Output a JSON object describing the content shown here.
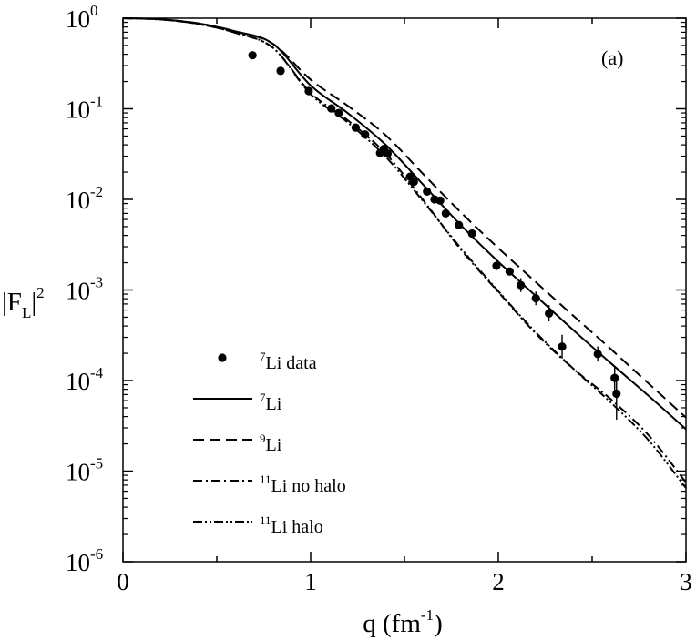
{
  "chart_data": {
    "type": "line",
    "title": "",
    "panel_label": "(a)",
    "xlabel": {
      "base": "q (fm",
      "exp": "-1",
      "close": ")"
    },
    "ylabel": {
      "open": "|F",
      "sub": "L",
      "close": "|",
      "exp": "2"
    },
    "x_scale": "linear",
    "y_scale": "log",
    "xlim": [
      0,
      3
    ],
    "ylim": [
      1e-06,
      1
    ],
    "grid": false,
    "legend_position": "bottom-left",
    "x_ticks": [
      {
        "value": 0,
        "label": "0"
      },
      {
        "value": 1,
        "label": "1"
      },
      {
        "value": 2,
        "label": "2"
      },
      {
        "value": 3,
        "label": "3"
      }
    ],
    "y_ticks": [
      {
        "value": 1,
        "base": "10",
        "exp": "0"
      },
      {
        "value": 0.1,
        "base": "10",
        "exp": "-1"
      },
      {
        "value": 0.01,
        "base": "10",
        "exp": "-2"
      },
      {
        "value": 0.001,
        "base": "10",
        "exp": "-3"
      },
      {
        "value": 0.0001,
        "base": "10",
        "exp": "-4"
      },
      {
        "value": 1e-05,
        "base": "10",
        "exp": "-5"
      },
      {
        "value": 1e-06,
        "base": "10",
        "exp": "-6"
      }
    ],
    "data_points": {
      "legend": {
        "sup": "7",
        "text": "Li data"
      },
      "points": [
        {
          "x": 0.69,
          "y": 0.39
        },
        {
          "x": 0.84,
          "y": 0.262
        },
        {
          "x": 0.99,
          "y": 0.157
        },
        {
          "x": 1.11,
          "y": 0.101
        },
        {
          "x": 1.15,
          "y": 0.09
        },
        {
          "x": 1.24,
          "y": 0.062
        },
        {
          "x": 1.29,
          "y": 0.052
        },
        {
          "x": 1.37,
          "y": 0.0325
        },
        {
          "x": 1.39,
          "y": 0.036
        },
        {
          "x": 1.41,
          "y": 0.032
        },
        {
          "x": 1.53,
          "y": 0.0178
        },
        {
          "x": 1.55,
          "y": 0.0156
        },
        {
          "x": 1.62,
          "y": 0.0122
        },
        {
          "x": 1.66,
          "y": 0.01
        },
        {
          "x": 1.69,
          "y": 0.0097
        },
        {
          "x": 1.72,
          "y": 0.007
        },
        {
          "x": 1.79,
          "y": 0.0052
        },
        {
          "x": 1.86,
          "y": 0.0042
        },
        {
          "x": 1.99,
          "y": 0.00185,
          "err": [
            0.00165,
            0.00205
          ]
        },
        {
          "x": 2.06,
          "y": 0.0016,
          "err": [
            0.00145,
            0.00175
          ]
        },
        {
          "x": 2.12,
          "y": 0.00113,
          "err": [
            0.00095,
            0.00135
          ]
        },
        {
          "x": 2.2,
          "y": 0.00081,
          "err": [
            0.00068,
            0.00096
          ]
        },
        {
          "x": 2.27,
          "y": 0.00055,
          "err": [
            0.00045,
            0.00068
          ]
        },
        {
          "x": 2.34,
          "y": 0.000237,
          "err": [
            0.000175,
            0.00032
          ]
        },
        {
          "x": 2.53,
          "y": 0.000196,
          "err": [
            0.000162,
            0.000238
          ]
        },
        {
          "x": 2.62,
          "y": 0.000107,
          "err": [
            7.8e-05,
            0.000145
          ]
        },
        {
          "x": 2.63,
          "y": 7.15e-05,
          "err": [
            3.7e-05,
            0.000105
          ]
        }
      ]
    },
    "series": [
      {
        "name": "Li",
        "legend": {
          "sup": "7",
          "text": "Li"
        },
        "dash": "",
        "x": [
          0,
          0.2,
          0.4,
          0.6,
          0.8,
          1.0,
          1.2,
          1.4,
          1.6,
          1.8,
          2.0,
          2.2,
          2.4,
          2.6,
          2.8,
          3.0
        ],
        "y": [
          1,
          0.972,
          0.878,
          0.715,
          0.52,
          0.181,
          0.089,
          0.04,
          0.0145,
          0.0052,
          0.00205,
          0.000858,
          0.00036,
          0.000155,
          6.8e-05,
          2.9e-05
        ]
      },
      {
        "name": "Li",
        "legend": {
          "sup": "9",
          "text": "Li"
        },
        "dash": "12,6",
        "x": [
          0,
          0.2,
          0.4,
          0.6,
          0.8,
          1.0,
          1.2,
          1.4,
          1.6,
          1.8,
          2.0,
          2.2,
          2.4,
          2.6,
          2.8,
          3.0
        ],
        "y": [
          1,
          0.972,
          0.878,
          0.715,
          0.52,
          0.21,
          0.107,
          0.051,
          0.019,
          0.0072,
          0.0029,
          0.00122,
          0.000518,
          0.000222,
          9.3e-05,
          3.9e-05
        ]
      },
      {
        "name": "Li no halo",
        "legend": {
          "sup": "11",
          "text": "Li no halo"
        },
        "dash": "10,4,2,4",
        "x": [
          0,
          0.2,
          0.4,
          0.6,
          0.8,
          1.0,
          1.2,
          1.4,
          1.6,
          1.8,
          2.0,
          2.2,
          2.4,
          2.6,
          2.8,
          3.0
        ],
        "y": [
          1,
          0.968,
          0.865,
          0.69,
          0.47,
          0.15,
          0.074,
          0.032,
          0.0098,
          0.0028,
          0.00095,
          0.00033,
          0.000135,
          6.2e-05,
          2.5e-05,
          7.5e-06
        ]
      },
      {
        "name": "Li halo",
        "legend": {
          "sup": "11",
          "text": "Li halo"
        },
        "dash": "10,3,2,3,2,3",
        "x": [
          0,
          0.2,
          0.4,
          0.6,
          0.8,
          1.0,
          1.2,
          1.4,
          1.6,
          1.8,
          2.0,
          2.2,
          2.4,
          2.6,
          2.8,
          3.0
        ],
        "y": [
          1,
          0.968,
          0.865,
          0.69,
          0.47,
          0.145,
          0.07,
          0.0295,
          0.0095,
          0.0029,
          0.00097,
          0.00034,
          0.000135,
          5.7e-05,
          2.2e-05,
          6.5e-06
        ]
      }
    ]
  }
}
